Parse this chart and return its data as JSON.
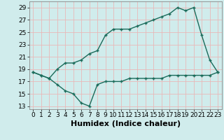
{
  "xlabel": "Humidex (Indice chaleur)",
  "bg_color": "#d0ecec",
  "line_color": "#1a6b5a",
  "grid_color": "#e8b8b8",
  "xlim": [
    -0.5,
    23.5
  ],
  "ylim": [
    12.5,
    30.0
  ],
  "xticks": [
    0,
    1,
    2,
    3,
    4,
    5,
    6,
    7,
    8,
    9,
    10,
    11,
    12,
    13,
    14,
    15,
    16,
    17,
    18,
    19,
    20,
    21,
    22,
    23
  ],
  "yticks": [
    13,
    15,
    17,
    19,
    21,
    23,
    25,
    27,
    29
  ],
  "line1_x": [
    0,
    1,
    2,
    3,
    4,
    5,
    6,
    7,
    8,
    9,
    10,
    11,
    12,
    13,
    14,
    15,
    16,
    17,
    18,
    19,
    20,
    21,
    22,
    23
  ],
  "line1_y": [
    18.5,
    18.0,
    17.5,
    19.0,
    20.0,
    20.0,
    20.5,
    21.5,
    22.0,
    24.5,
    25.5,
    25.5,
    25.5,
    26.0,
    26.5,
    27.0,
    27.5,
    28.0,
    29.0,
    28.5,
    29.0,
    24.5,
    20.5,
    18.5
  ],
  "line2_x": [
    0,
    1,
    2,
    3,
    4,
    5,
    6,
    7,
    8,
    9,
    10,
    11,
    12,
    13,
    14,
    15,
    16,
    17,
    18,
    19,
    20,
    21,
    22,
    23
  ],
  "line2_y": [
    18.5,
    18.0,
    17.5,
    16.5,
    15.5,
    15.0,
    13.5,
    13.0,
    16.5,
    17.0,
    17.0,
    17.0,
    17.5,
    17.5,
    17.5,
    17.5,
    17.5,
    18.0,
    18.0,
    18.0,
    18.0,
    18.0,
    18.0,
    18.5
  ],
  "markersize": 3,
  "linewidth": 1.0,
  "xlabel_fontsize": 8,
  "tick_fontsize": 6.5
}
